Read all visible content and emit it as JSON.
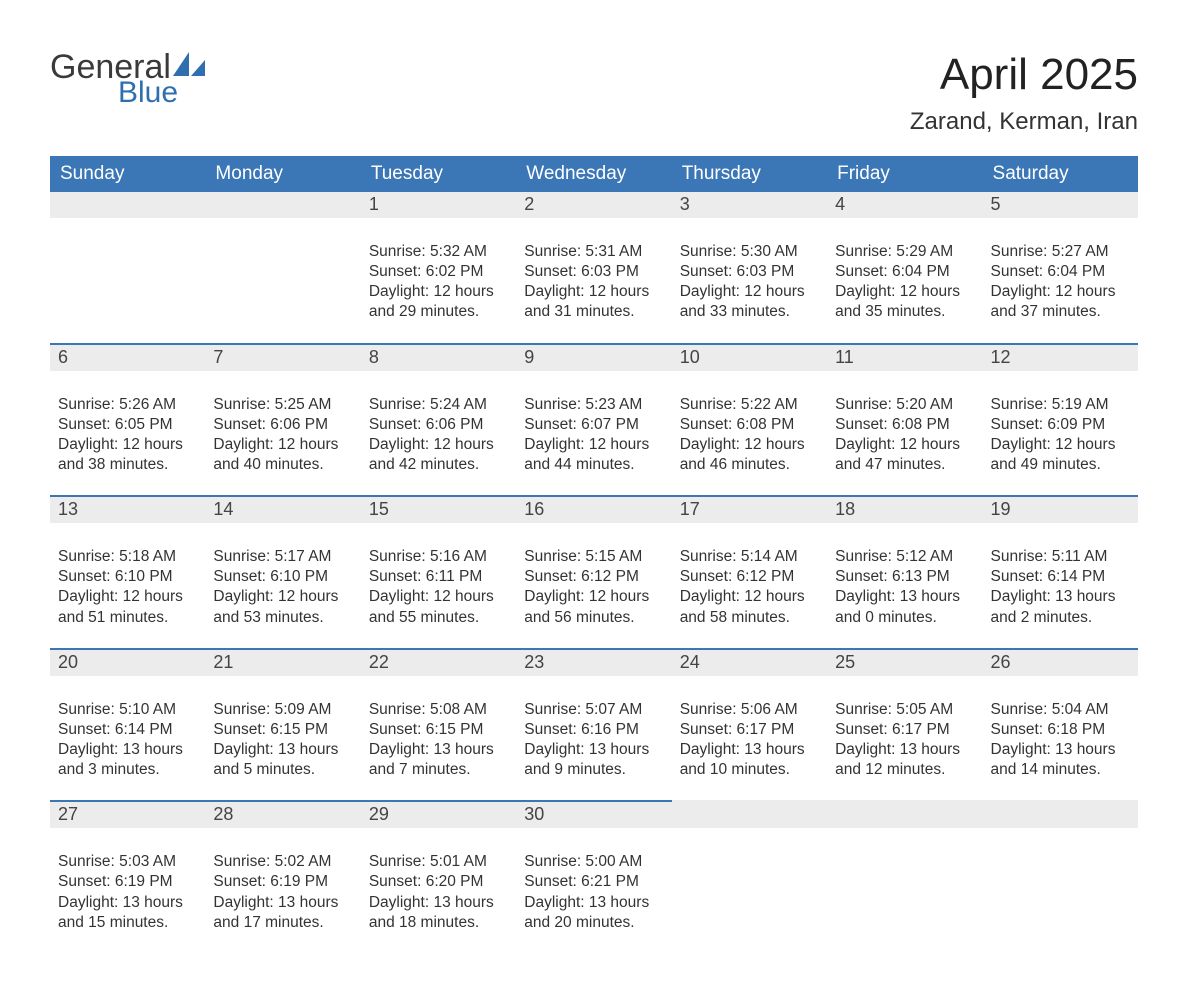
{
  "brand": {
    "word1": "General",
    "word2": "Blue",
    "word1_color": "#3a3a3a",
    "word2_color": "#2f6fb0",
    "shape_color": "#2f6fb0"
  },
  "title": "April 2025",
  "location": "Zarand, Kerman, Iran",
  "colors": {
    "header_bg": "#3b76b6",
    "header_text": "#ffffff",
    "daynum_bg": "#ececec",
    "daynum_border": "#3b76b6",
    "body_text": "#333333",
    "page_bg": "#ffffff"
  },
  "typography": {
    "title_fontsize": 44,
    "location_fontsize": 24,
    "weekday_fontsize": 19,
    "daynum_fontsize": 18,
    "body_fontsize": 15.5,
    "font_family": "Arial"
  },
  "weekdays": [
    "Sunday",
    "Monday",
    "Tuesday",
    "Wednesday",
    "Thursday",
    "Friday",
    "Saturday"
  ],
  "weeks": [
    [
      null,
      null,
      {
        "n": "1",
        "sunrise": "5:32 AM",
        "sunset": "6:02 PM",
        "daylight": "12 hours and 29 minutes."
      },
      {
        "n": "2",
        "sunrise": "5:31 AM",
        "sunset": "6:03 PM",
        "daylight": "12 hours and 31 minutes."
      },
      {
        "n": "3",
        "sunrise": "5:30 AM",
        "sunset": "6:03 PM",
        "daylight": "12 hours and 33 minutes."
      },
      {
        "n": "4",
        "sunrise": "5:29 AM",
        "sunset": "6:04 PM",
        "daylight": "12 hours and 35 minutes."
      },
      {
        "n": "5",
        "sunrise": "5:27 AM",
        "sunset": "6:04 PM",
        "daylight": "12 hours and 37 minutes."
      }
    ],
    [
      {
        "n": "6",
        "sunrise": "5:26 AM",
        "sunset": "6:05 PM",
        "daylight": "12 hours and 38 minutes."
      },
      {
        "n": "7",
        "sunrise": "5:25 AM",
        "sunset": "6:06 PM",
        "daylight": "12 hours and 40 minutes."
      },
      {
        "n": "8",
        "sunrise": "5:24 AM",
        "sunset": "6:06 PM",
        "daylight": "12 hours and 42 minutes."
      },
      {
        "n": "9",
        "sunrise": "5:23 AM",
        "sunset": "6:07 PM",
        "daylight": "12 hours and 44 minutes."
      },
      {
        "n": "10",
        "sunrise": "5:22 AM",
        "sunset": "6:08 PM",
        "daylight": "12 hours and 46 minutes."
      },
      {
        "n": "11",
        "sunrise": "5:20 AM",
        "sunset": "6:08 PM",
        "daylight": "12 hours and 47 minutes."
      },
      {
        "n": "12",
        "sunrise": "5:19 AM",
        "sunset": "6:09 PM",
        "daylight": "12 hours and 49 minutes."
      }
    ],
    [
      {
        "n": "13",
        "sunrise": "5:18 AM",
        "sunset": "6:10 PM",
        "daylight": "12 hours and 51 minutes."
      },
      {
        "n": "14",
        "sunrise": "5:17 AM",
        "sunset": "6:10 PM",
        "daylight": "12 hours and 53 minutes."
      },
      {
        "n": "15",
        "sunrise": "5:16 AM",
        "sunset": "6:11 PM",
        "daylight": "12 hours and 55 minutes."
      },
      {
        "n": "16",
        "sunrise": "5:15 AM",
        "sunset": "6:12 PM",
        "daylight": "12 hours and 56 minutes."
      },
      {
        "n": "17",
        "sunrise": "5:14 AM",
        "sunset": "6:12 PM",
        "daylight": "12 hours and 58 minutes."
      },
      {
        "n": "18",
        "sunrise": "5:12 AM",
        "sunset": "6:13 PM",
        "daylight": "13 hours and 0 minutes."
      },
      {
        "n": "19",
        "sunrise": "5:11 AM",
        "sunset": "6:14 PM",
        "daylight": "13 hours and 2 minutes."
      }
    ],
    [
      {
        "n": "20",
        "sunrise": "5:10 AM",
        "sunset": "6:14 PM",
        "daylight": "13 hours and 3 minutes."
      },
      {
        "n": "21",
        "sunrise": "5:09 AM",
        "sunset": "6:15 PM",
        "daylight": "13 hours and 5 minutes."
      },
      {
        "n": "22",
        "sunrise": "5:08 AM",
        "sunset": "6:15 PM",
        "daylight": "13 hours and 7 minutes."
      },
      {
        "n": "23",
        "sunrise": "5:07 AM",
        "sunset": "6:16 PM",
        "daylight": "13 hours and 9 minutes."
      },
      {
        "n": "24",
        "sunrise": "5:06 AM",
        "sunset": "6:17 PM",
        "daylight": "13 hours and 10 minutes."
      },
      {
        "n": "25",
        "sunrise": "5:05 AM",
        "sunset": "6:17 PM",
        "daylight": "13 hours and 12 minutes."
      },
      {
        "n": "26",
        "sunrise": "5:04 AM",
        "sunset": "6:18 PM",
        "daylight": "13 hours and 14 minutes."
      }
    ],
    [
      {
        "n": "27",
        "sunrise": "5:03 AM",
        "sunset": "6:19 PM",
        "daylight": "13 hours and 15 minutes."
      },
      {
        "n": "28",
        "sunrise": "5:02 AM",
        "sunset": "6:19 PM",
        "daylight": "13 hours and 17 minutes."
      },
      {
        "n": "29",
        "sunrise": "5:01 AM",
        "sunset": "6:20 PM",
        "daylight": "13 hours and 18 minutes."
      },
      {
        "n": "30",
        "sunrise": "5:00 AM",
        "sunset": "6:21 PM",
        "daylight": "13 hours and 20 minutes."
      },
      null,
      null,
      null
    ]
  ],
  "labels": {
    "sunrise": "Sunrise: ",
    "sunset": "Sunset: ",
    "daylight": "Daylight: "
  }
}
